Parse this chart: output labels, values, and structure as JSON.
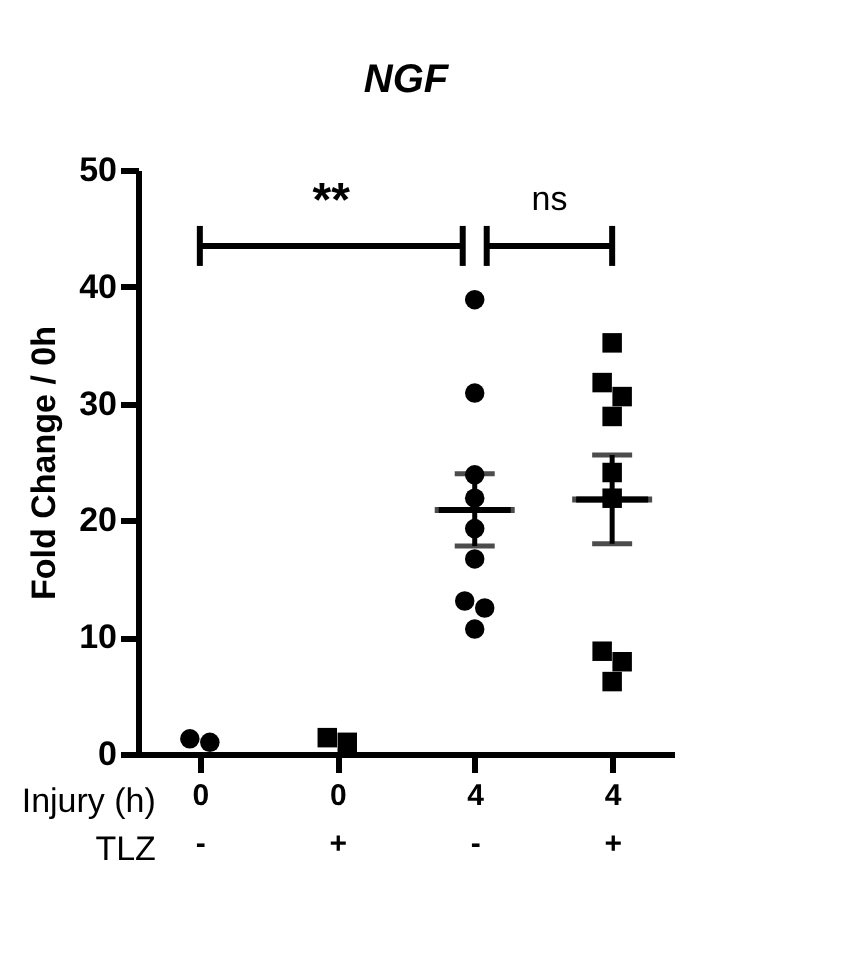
{
  "chart_data": {
    "type": "scatter",
    "title": "NGF",
    "ylabel": "Fold Change / 0h",
    "categories": [
      "0 -",
      "0 +",
      "4 -",
      "4 +"
    ],
    "ylim": [
      0,
      50
    ],
    "yticks": [
      0,
      10,
      20,
      30,
      40,
      50
    ],
    "grid": false,
    "annotations": [
      "**",
      "ns",
      "Injury (h)",
      "TLZ"
    ],
    "series": [
      {
        "marker": "circle",
        "color": "#000000",
        "x": [
          "0 -",
          "0 -",
          "4 -",
          "4 -",
          "4 -",
          "4 -",
          "4 -",
          "4 -",
          "4 -",
          "4 -",
          "4 -"
        ],
        "values": [
          1.3,
          1.0,
          38.9,
          30.9,
          23.9,
          21.9,
          19.3,
          16.7,
          13.1,
          12.5,
          10.7
        ]
      },
      {
        "marker": "square",
        "color": "#000000",
        "x": [
          "0 +",
          "0 +",
          "4 +",
          "4 +",
          "4 +",
          "4 +",
          "4 +",
          "4 +",
          "4 +",
          "4 +",
          "4 +"
        ],
        "values": [
          1.4,
          1.0,
          35.2,
          31.8,
          30.6,
          28.9,
          24.1,
          21.9,
          8.8,
          7.9,
          6.2
        ]
      },
      {
        "type": "box",
        "color": "#000000",
        "boxes": [
          null,
          null,
          {
            "low": 17.8,
            "q1": 20.9,
            "median": 20.9,
            "q3": 20.9,
            "high": 24.0
          },
          {
            "low": 18.0,
            "q1": 21.8,
            "median": 21.8,
            "q3": 21.8,
            "high": 25.6
          }
        ]
      }
    ]
  }
}
